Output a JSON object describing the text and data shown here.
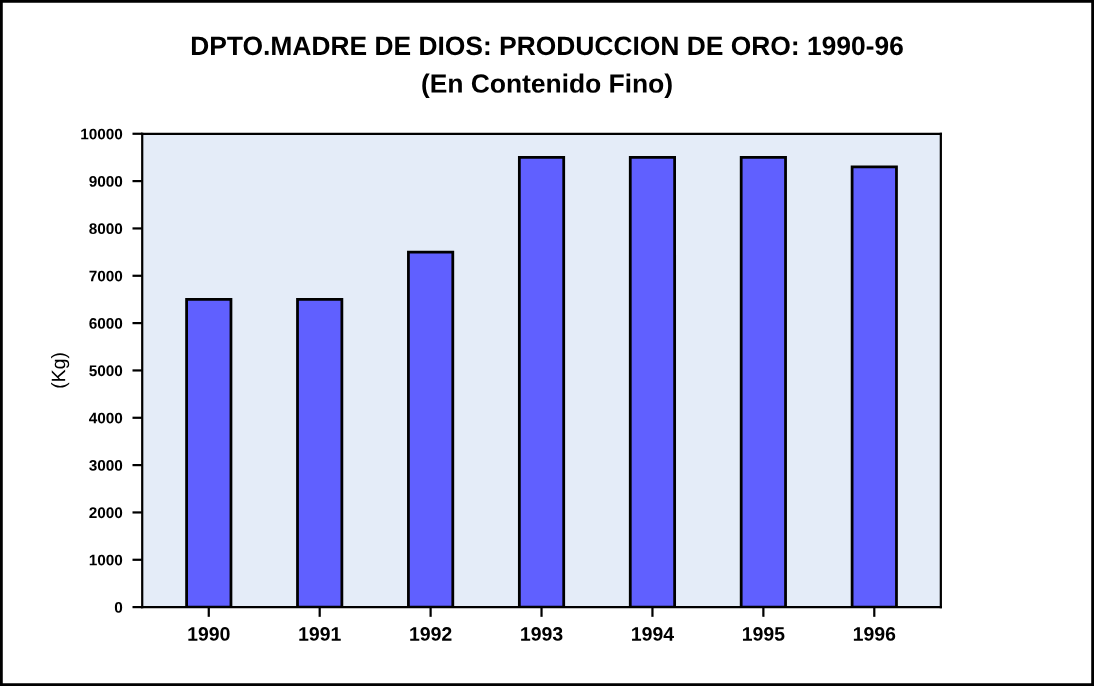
{
  "chart_data": {
    "type": "bar",
    "title": "DPTO.MADRE DE DIOS: PRODUCCION DE ORO: 1990-96",
    "subtitle": "(En Contenido Fino)",
    "ylabel": "(Kg)",
    "categories": [
      "1990",
      "1991",
      "1992",
      "1993",
      "1994",
      "1995",
      "1996"
    ],
    "values": [
      6500,
      6500,
      7500,
      9500,
      9500,
      9500,
      9300
    ],
    "color": "#6060ff",
    "ylim": [
      0,
      10000
    ],
    "yticks": [
      0,
      1000,
      2000,
      3000,
      4000,
      5000,
      6000,
      7000,
      8000,
      9000,
      10000
    ],
    "grid": false
  }
}
